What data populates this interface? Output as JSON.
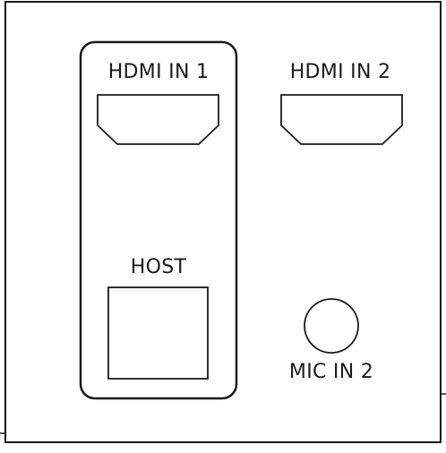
{
  "panel": {
    "hdmi_in_1": {
      "label": "HDMI IN 1",
      "connector": "hdmi-port-icon",
      "grouped_with_host": true
    },
    "hdmi_in_2": {
      "label": "HDMI IN 2",
      "connector": "hdmi-port-icon"
    },
    "host": {
      "label": "HOST",
      "connector": "usb-b-port-icon"
    },
    "mic_in_2": {
      "label": "MIC IN 2",
      "connector": "audio-jack-icon"
    }
  },
  "colors": {
    "stroke": "#1a1a1a",
    "background": "#ffffff"
  }
}
